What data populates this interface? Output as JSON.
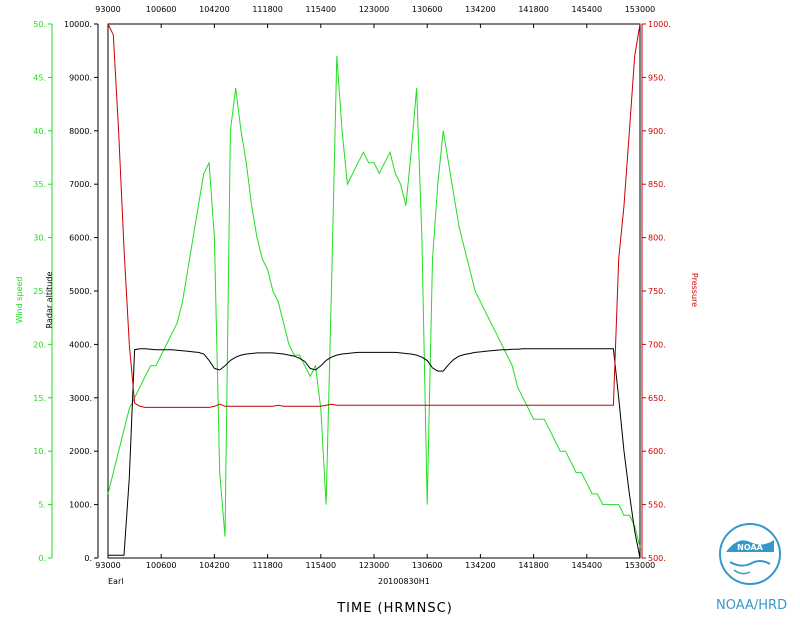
{
  "chart_data": {
    "type": "line",
    "xlabel": "TIME (HRMNSC)",
    "x_ticks": [
      "93000",
      "100600",
      "104200",
      "111800",
      "115400",
      "123000",
      "130600",
      "134200",
      "141800",
      "145400",
      "153000"
    ],
    "storm_name": "Earl",
    "flight_id": "20100830H1",
    "axes": {
      "wind": {
        "label": "Wind speed",
        "ylim": [
          0,
          50
        ],
        "ticks": [
          "0.",
          "5.",
          "10.",
          "15.",
          "20.",
          "25.",
          "30.",
          "35.",
          "40.",
          "45.",
          "50."
        ],
        "color": "#22dd22"
      },
      "radar": {
        "label": "Radar altitude",
        "ylim": [
          0,
          10000
        ],
        "ticks": [
          "0.",
          "1000.",
          "2000.",
          "3000.",
          "4000.",
          "5000.",
          "6000.",
          "7000.",
          "8000.",
          "9000.",
          "10000."
        ],
        "color": "#000000"
      },
      "pressure": {
        "label": "Pressure",
        "ylim": [
          500,
          1000
        ],
        "ticks": [
          "500.",
          "550.",
          "600.",
          "650.",
          "700.",
          "750.",
          "800.",
          "850.",
          "900.",
          "950.",
          "1000."
        ],
        "color": "#cc0000"
      }
    },
    "series": [
      {
        "name": "Wind speed",
        "axis": "wind",
        "color": "#22dd22",
        "x": [
          0,
          1,
          2,
          3,
          4,
          5,
          6,
          7,
          8,
          9,
          10,
          11,
          12,
          13,
          14,
          15,
          16,
          17,
          18,
          19,
          20,
          21,
          22,
          23,
          24,
          25,
          26,
          27,
          28,
          29,
          30,
          31,
          32,
          33,
          34,
          35,
          36,
          37,
          38,
          39,
          40,
          41,
          42,
          43,
          44,
          45,
          46,
          47,
          48,
          49,
          50,
          51,
          52,
          53,
          54,
          55,
          56,
          57,
          58,
          59,
          60,
          61,
          62,
          63,
          64,
          65,
          66,
          67,
          68,
          69,
          70,
          71,
          72,
          73,
          74,
          75,
          76,
          77,
          78,
          79,
          80,
          81,
          82,
          83,
          84,
          85,
          86,
          87,
          88,
          89,
          90,
          91,
          92,
          93,
          94,
          95,
          96,
          97,
          98,
          99,
          100
        ],
        "values": [
          6,
          8,
          10,
          12,
          14,
          15,
          16,
          17,
          18,
          18,
          19,
          20,
          21,
          22,
          24,
          27,
          30,
          33,
          36,
          37,
          30,
          8,
          2,
          40,
          44,
          40,
          37,
          33,
          30,
          28,
          27,
          25,
          24,
          22,
          20,
          19,
          19,
          18,
          17,
          18,
          14,
          5,
          25,
          47,
          40,
          35,
          36,
          37,
          38,
          37,
          37,
          36,
          37,
          38,
          36,
          35,
          33,
          38,
          44,
          30,
          5,
          28,
          35,
          40,
          37,
          34,
          31,
          29,
          27,
          25,
          24,
          23,
          22,
          21,
          20,
          19,
          18,
          16,
          15,
          14,
          13,
          13,
          13,
          12,
          11,
          10,
          10,
          9,
          8,
          8,
          7,
          6,
          6,
          5,
          5,
          5,
          5,
          4,
          4,
          3,
          1
        ]
      },
      {
        "name": "Radar altitude",
        "axis": "radar",
        "color": "#000000",
        "x": [
          0,
          1,
          2,
          3,
          4,
          5,
          6,
          7,
          8,
          9,
          10,
          11,
          12,
          13,
          14,
          15,
          16,
          17,
          18,
          19,
          20,
          21,
          22,
          23,
          24,
          25,
          26,
          27,
          28,
          29,
          30,
          31,
          32,
          33,
          34,
          35,
          36,
          37,
          38,
          39,
          40,
          41,
          42,
          43,
          44,
          45,
          46,
          47,
          48,
          49,
          50,
          51,
          52,
          53,
          54,
          55,
          56,
          57,
          58,
          59,
          60,
          61,
          62,
          63,
          64,
          65,
          66,
          67,
          68,
          69,
          70,
          71,
          72,
          73,
          74,
          75,
          76,
          77,
          78,
          79,
          80,
          81,
          82,
          83,
          84,
          85,
          86,
          87,
          88,
          89,
          90,
          91,
          92,
          93,
          94,
          95,
          96,
          97,
          98,
          99,
          100
        ],
        "values": [
          50,
          50,
          50,
          50,
          1500,
          3900,
          3920,
          3920,
          3910,
          3900,
          3900,
          3900,
          3900,
          3890,
          3880,
          3870,
          3860,
          3850,
          3820,
          3700,
          3550,
          3520,
          3600,
          3700,
          3760,
          3800,
          3820,
          3830,
          3840,
          3840,
          3840,
          3840,
          3830,
          3820,
          3800,
          3780,
          3740,
          3680,
          3550,
          3520,
          3600,
          3700,
          3760,
          3800,
          3820,
          3830,
          3840,
          3850,
          3850,
          3850,
          3850,
          3850,
          3850,
          3850,
          3850,
          3840,
          3830,
          3820,
          3800,
          3760,
          3700,
          3560,
          3500,
          3500,
          3620,
          3720,
          3780,
          3810,
          3830,
          3850,
          3860,
          3870,
          3880,
          3890,
          3900,
          3900,
          3910,
          3910,
          3920,
          3920,
          3920,
          3920,
          3920,
          3920,
          3920,
          3920,
          3920,
          3920,
          3920,
          3920,
          3920,
          3920,
          3920,
          3920,
          3920,
          3920,
          3000,
          2000,
          1200,
          500,
          0
        ]
      },
      {
        "name": "Pressure",
        "axis": "pressure",
        "color": "#cc0000",
        "x": [
          0,
          1,
          2,
          3,
          4,
          5,
          6,
          7,
          8,
          9,
          10,
          11,
          12,
          13,
          14,
          15,
          16,
          17,
          18,
          19,
          20,
          21,
          22,
          23,
          24,
          25,
          26,
          27,
          28,
          29,
          30,
          31,
          32,
          33,
          34,
          35,
          36,
          37,
          38,
          39,
          40,
          41,
          42,
          43,
          44,
          45,
          46,
          47,
          48,
          49,
          50,
          51,
          52,
          53,
          54,
          55,
          56,
          57,
          58,
          59,
          60,
          61,
          62,
          63,
          64,
          65,
          66,
          67,
          68,
          69,
          70,
          71,
          72,
          73,
          74,
          75,
          76,
          77,
          78,
          79,
          80,
          81,
          82,
          83,
          84,
          85,
          86,
          87,
          88,
          89,
          90,
          91,
          92,
          93,
          94,
          95,
          96,
          97,
          98,
          99,
          100
        ],
        "values": [
          1000,
          990,
          900,
          790,
          700,
          645,
          642,
          641,
          641,
          641,
          641,
          641,
          641,
          641,
          641,
          641,
          641,
          641,
          641,
          641,
          642,
          644,
          642,
          642,
          642,
          642,
          642,
          642,
          642,
          642,
          642,
          642,
          643,
          642,
          642,
          642,
          642,
          642,
          642,
          642,
          642,
          643,
          644,
          643,
          643,
          643,
          643,
          643,
          643,
          643,
          643,
          643,
          643,
          643,
          643,
          643,
          643,
          643,
          643,
          643,
          643,
          643,
          643,
          643,
          643,
          643,
          643,
          643,
          643,
          643,
          643,
          643,
          643,
          643,
          643,
          643,
          643,
          643,
          643,
          643,
          643,
          643,
          643,
          643,
          643,
          643,
          643,
          643,
          643,
          643,
          643,
          643,
          643,
          643,
          643,
          643,
          780,
          830,
          900,
          970,
          1000
        ]
      }
    ]
  },
  "logo": {
    "brand": "NOAA/HRD",
    "emblem_text": "NOAA"
  }
}
